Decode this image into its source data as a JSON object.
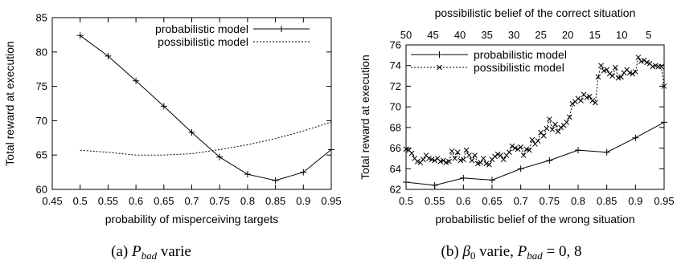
{
  "chart_data": [
    {
      "type": "line",
      "title": "",
      "xlabel": "probability of misperceiving targets",
      "ylabel": "Total reward at execution",
      "xlim": [
        0.45,
        0.95
      ],
      "ylim": [
        60,
        85
      ],
      "xticks": [
        "0.45",
        "0.5",
        "0.55",
        "0.6",
        "0.65",
        "0.7",
        "0.75",
        "0.8",
        "0.85",
        "0.9",
        "0.95"
      ],
      "yticks": [
        "60",
        "65",
        "70",
        "75",
        "80",
        "85"
      ],
      "legend_position": "top-right",
      "grid": false,
      "series": [
        {
          "name": "probabilistic model",
          "style": "solid-plus",
          "x": [
            0.5,
            0.55,
            0.6,
            0.65,
            0.7,
            0.75,
            0.8,
            0.85,
            0.9,
            0.95
          ],
          "y": [
            82.4,
            79.4,
            75.8,
            72.1,
            68.3,
            64.7,
            62.2,
            61.3,
            62.5,
            65.8
          ]
        },
        {
          "name": "possibilistic model",
          "style": "dotted",
          "x": [
            0.5,
            0.55,
            0.6,
            0.65,
            0.7,
            0.75,
            0.8,
            0.85,
            0.9,
            0.95
          ],
          "y": [
            65.7,
            65.4,
            65.0,
            65.0,
            65.2,
            65.8,
            66.5,
            67.4,
            68.5,
            69.8
          ]
        }
      ]
    },
    {
      "type": "line",
      "title": "",
      "xlabel": "probabilistic belief of the wrong situation",
      "ylabel": "Total reward at execution",
      "x2label": "possibilistic belief of the correct situation",
      "xlim": [
        0.5,
        0.95
      ],
      "ylim": [
        62,
        76
      ],
      "xticks": [
        "0.5",
        "0.55",
        "0.6",
        "0.65",
        "0.7",
        "0.75",
        "0.8",
        "0.85",
        "0.9",
        "0.95"
      ],
      "yticks": [
        "62",
        "64",
        "66",
        "68",
        "70",
        "72",
        "74",
        "76"
      ],
      "x2ticks": [
        {
          "label": "50",
          "x": 0.5
        },
        {
          "label": "45",
          "x": 0.547
        },
        {
          "label": "40",
          "x": 0.594
        },
        {
          "label": "35",
          "x": 0.641
        },
        {
          "label": "30",
          "x": 0.688
        },
        {
          "label": "25",
          "x": 0.735
        },
        {
          "label": "20",
          "x": 0.782
        },
        {
          "label": "15",
          "x": 0.829
        },
        {
          "label": "10",
          "x": 0.876
        },
        {
          "label": "5",
          "x": 0.923
        }
      ],
      "legend_position": "top-left",
      "grid": false,
      "series": [
        {
          "name": "probabilistic model",
          "style": "solid-plus",
          "x": [
            0.5,
            0.55,
            0.6,
            0.65,
            0.7,
            0.75,
            0.8,
            0.85,
            0.9,
            0.95
          ],
          "y": [
            62.7,
            62.4,
            63.1,
            62.9,
            64.0,
            64.8,
            65.8,
            65.6,
            67.0,
            68.5
          ]
        },
        {
          "name": "possibilistic model",
          "style": "dotted-cross",
          "x": [
            0.5,
            0.505,
            0.51,
            0.515,
            0.52,
            0.525,
            0.53,
            0.535,
            0.54,
            0.545,
            0.55,
            0.555,
            0.56,
            0.565,
            0.57,
            0.575,
            0.58,
            0.585,
            0.59,
            0.595,
            0.6,
            0.605,
            0.61,
            0.615,
            0.62,
            0.625,
            0.63,
            0.635,
            0.64,
            0.645,
            0.65,
            0.655,
            0.66,
            0.665,
            0.67,
            0.675,
            0.68,
            0.685,
            0.69,
            0.695,
            0.7,
            0.705,
            0.71,
            0.715,
            0.72,
            0.725,
            0.73,
            0.735,
            0.74,
            0.745,
            0.75,
            0.755,
            0.76,
            0.765,
            0.77,
            0.775,
            0.78,
            0.785,
            0.79,
            0.795,
            0.8,
            0.805,
            0.81,
            0.815,
            0.82,
            0.825,
            0.83,
            0.835,
            0.84,
            0.845,
            0.85,
            0.855,
            0.86,
            0.865,
            0.87,
            0.875,
            0.88,
            0.885,
            0.89,
            0.895,
            0.9,
            0.905,
            0.91,
            0.915,
            0.92,
            0.925,
            0.93,
            0.935,
            0.94,
            0.945,
            0.95
          ],
          "y": [
            65.9,
            65.8,
            65.5,
            65.0,
            64.7,
            64.6,
            64.9,
            65.3,
            65.0,
            64.9,
            64.8,
            65.0,
            64.7,
            64.8,
            64.6,
            64.7,
            65.7,
            65.0,
            65.6,
            64.8,
            64.9,
            65.8,
            65.3,
            64.8,
            65.3,
            64.5,
            64.6,
            65.0,
            64.5,
            64.4,
            64.9,
            65.2,
            65.4,
            65.3,
            64.9,
            65.3,
            65.6,
            66.2,
            66.0,
            65.9,
            66.1,
            65.3,
            65.9,
            65.8,
            66.8,
            66.4,
            66.7,
            67.5,
            67.2,
            67.9,
            68.8,
            67.8,
            68.3,
            67.6,
            68.0,
            68.2,
            68.5,
            69.0,
            70.3,
            70.5,
            70.8,
            70.6,
            71.2,
            70.9,
            71.0,
            70.6,
            70.4,
            72.9,
            74.0,
            73.5,
            73.6,
            73.2,
            73.0,
            73.8,
            72.8,
            72.9,
            73.3,
            73.6,
            73.3,
            73.2,
            73.4,
            74.8,
            74.4,
            74.5,
            74.3,
            74.2,
            73.9,
            74.0,
            73.9,
            73.9,
            72.0
          ]
        }
      ]
    }
  ],
  "captions": {
    "a_prefix": "(a) ",
    "a_var": "P",
    "a_sub": "bad",
    "a_suffix": " varie",
    "b_prefix": "(b) ",
    "b_var": "β",
    "b_sub0": "0",
    "b_mid": " varie, ",
    "b_var2": "P",
    "b_sub2": "bad",
    "b_eq": " = 0, 8"
  }
}
